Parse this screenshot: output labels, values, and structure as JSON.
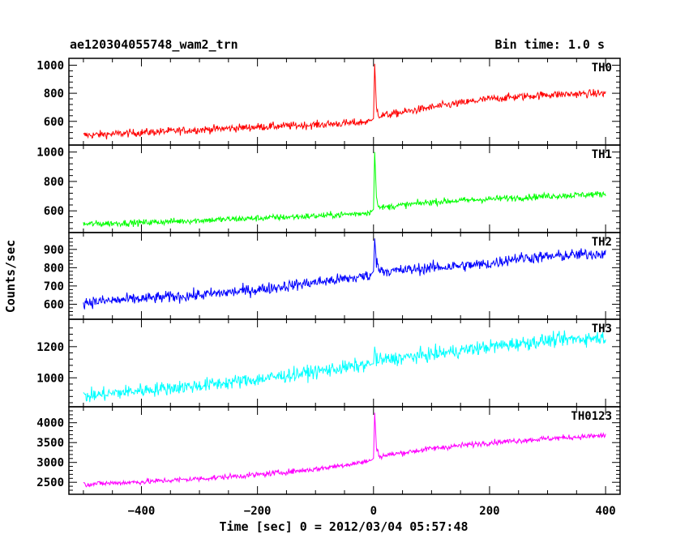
{
  "chart_data": {
    "type": "line",
    "title": "ae120304055748_wam2_trn",
    "subtitle": "Bin time: 1.0 s",
    "xlabel": "Time [sec] 0 = 2012/03/04 05:57:48",
    "ylabel": "Counts/sec",
    "xlim": [
      -525,
      425
    ],
    "x_ticks": [
      -400,
      -200,
      0,
      200,
      400
    ],
    "x_tick_labels": [
      "−400",
      "−200",
      "0",
      "200",
      "400"
    ],
    "x_range_data": [
      -500,
      400
    ],
    "grid": false,
    "panels": [
      {
        "name": "TH0",
        "color": "#ff0000",
        "ylim": [
          460,
          1020
        ],
        "y_ticks": [
          600,
          800,
          1000
        ],
        "y_tick_labels": [
          "600",
          "800",
          "1000"
        ],
        "x": [
          -500,
          -400,
          -300,
          -200,
          -100,
          -30,
          -5,
          0,
          2,
          5,
          10,
          30,
          100,
          200,
          300,
          400
        ],
        "values": [
          500,
          520,
          540,
          560,
          575,
          590,
          600,
          620,
          1010,
          700,
          640,
          650,
          700,
          760,
          790,
          800
        ],
        "noise": 28
      },
      {
        "name": "TH1",
        "color": "#00ff00",
        "ylim": [
          480,
          1020
        ],
        "y_ticks": [
          600,
          800,
          1000
        ],
        "y_tick_labels": [
          "600",
          "800",
          "1000"
        ],
        "x": [
          -500,
          -400,
          -300,
          -200,
          -100,
          -30,
          -5,
          0,
          2,
          5,
          10,
          30,
          100,
          200,
          300,
          400
        ],
        "values": [
          510,
          520,
          535,
          550,
          565,
          580,
          590,
          610,
          1000,
          700,
          620,
          630,
          660,
          680,
          700,
          715
        ],
        "noise": 22
      },
      {
        "name": "TH2",
        "color": "#0000ff",
        "ylim": [
          540,
          970
        ],
        "y_ticks": [
          600,
          700,
          800,
          900
        ],
        "y_tick_labels": [
          "600",
          "700",
          "800",
          "900"
        ],
        "x": [
          -500,
          -400,
          -300,
          -200,
          -100,
          -30,
          -5,
          0,
          2,
          5,
          10,
          30,
          100,
          200,
          240,
          300,
          400
        ],
        "values": [
          610,
          630,
          650,
          680,
          720,
          745,
          760,
          780,
          960,
          830,
          790,
          780,
          800,
          820,
          850,
          860,
          880
        ],
        "noise": 32
      },
      {
        "name": "TH3",
        "color": "#00ffff",
        "ylim": [
          840,
          1350
        ],
        "y_ticks": [
          1000,
          1200
        ],
        "y_tick_labels": [
          "1000",
          "1200"
        ],
        "x": [
          -500,
          -400,
          -300,
          -200,
          -100,
          0,
          2,
          5,
          100,
          200,
          300,
          400
        ],
        "values": [
          880,
          920,
          950,
          990,
          1040,
          1090,
          1200,
          1110,
          1150,
          1200,
          1240,
          1260
        ],
        "noise": 45
      },
      {
        "name": "TH0123",
        "color": "#ff00ff",
        "ylim": [
          2300,
          4300
        ],
        "y_ticks": [
          2500,
          3000,
          3500,
          4000
        ],
        "y_tick_labels": [
          "2500",
          "3000",
          "3500",
          "4000"
        ],
        "x": [
          -500,
          -400,
          -300,
          -200,
          -100,
          -30,
          -5,
          0,
          2,
          5,
          10,
          30,
          100,
          200,
          300,
          400
        ],
        "values": [
          2450,
          2510,
          2590,
          2690,
          2830,
          2980,
          3040,
          3100,
          4250,
          3400,
          3150,
          3200,
          3350,
          3500,
          3600,
          3680
        ],
        "noise": 70
      }
    ]
  }
}
